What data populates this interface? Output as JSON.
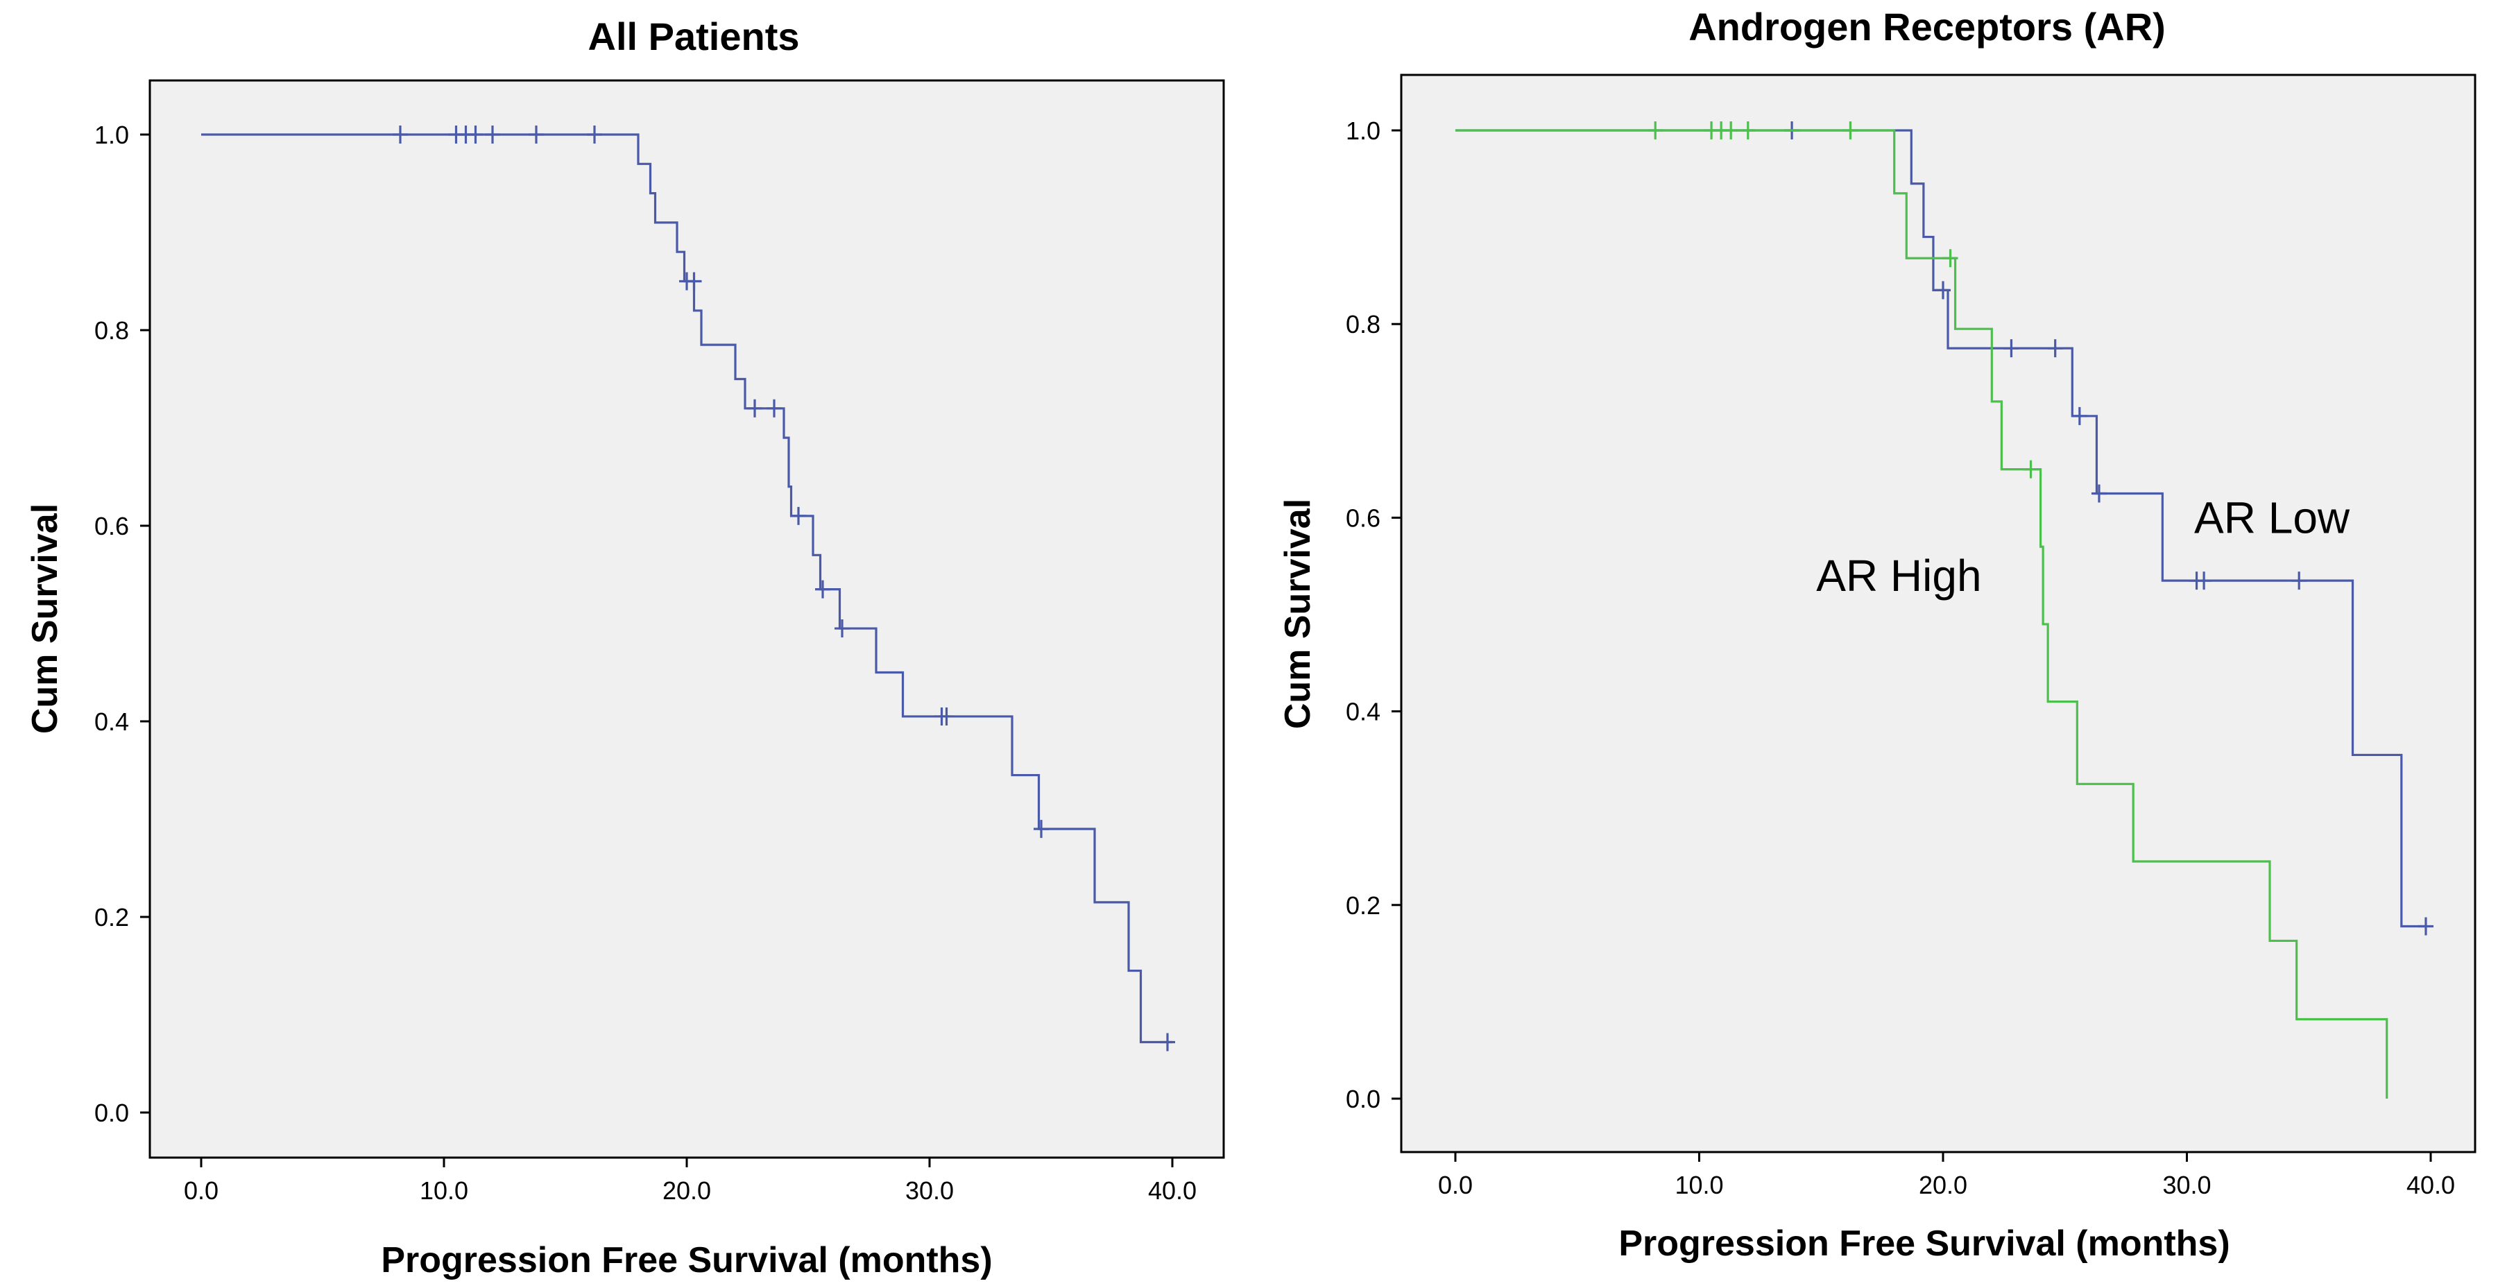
{
  "chart_data": [
    {
      "type": "line",
      "subtype": "kaplan-meier",
      "title": "All Patients",
      "xlabel": "Progression Free Survival (months)",
      "ylabel": "Cum Survival",
      "xlim": [
        0,
        40
      ],
      "ylim": [
        0,
        1
      ],
      "xticks": [
        "0.0",
        "10.0",
        "20.0",
        "30.0",
        "40.0"
      ],
      "yticks": [
        "0.0",
        "0.2",
        "0.4",
        "0.6",
        "0.8",
        "1.0"
      ],
      "grid": false,
      "series": [
        {
          "name": "All Patients",
          "color": "#4a5aa8",
          "steps": [
            [
              0,
              1.0
            ],
            [
              18.0,
              0.97
            ],
            [
              18.5,
              0.94
            ],
            [
              18.7,
              0.91
            ],
            [
              19.6,
              0.88
            ],
            [
              19.9,
              0.85
            ],
            [
              20.3,
              0.82
            ],
            [
              20.6,
              0.785
            ],
            [
              22.0,
              0.75
            ],
            [
              22.4,
              0.72
            ],
            [
              24.0,
              0.69
            ],
            [
              24.2,
              0.64
            ],
            [
              24.3,
              0.61
            ],
            [
              25.2,
              0.57
            ],
            [
              25.5,
              0.535
            ],
            [
              26.3,
              0.495
            ],
            [
              27.8,
              0.45
            ],
            [
              28.9,
              0.405
            ],
            [
              33.4,
              0.345
            ],
            [
              34.5,
              0.29
            ],
            [
              36.8,
              0.215
            ],
            [
              38.2,
              0.145
            ],
            [
              38.7,
              0.072
            ]
          ],
          "end_x": 40.0,
          "censored": [
            [
              8.2,
              1.0
            ],
            [
              10.5,
              1.0
            ],
            [
              10.9,
              1.0
            ],
            [
              11.3,
              1.0
            ],
            [
              12.0,
              1.0
            ],
            [
              13.8,
              1.0
            ],
            [
              16.2,
              1.0
            ],
            [
              20.0,
              0.85
            ],
            [
              20.3,
              0.85
            ],
            [
              22.8,
              0.72
            ],
            [
              23.6,
              0.72
            ],
            [
              24.6,
              0.61
            ],
            [
              25.6,
              0.535
            ],
            [
              26.4,
              0.495
            ],
            [
              30.5,
              0.405
            ],
            [
              30.7,
              0.405
            ],
            [
              34.6,
              0.29
            ],
            [
              39.8,
              0.072
            ]
          ]
        }
      ]
    },
    {
      "type": "line",
      "subtype": "kaplan-meier",
      "title": "Androgen Receptors (AR)",
      "xlabel": "Progression Free Survival (months)",
      "ylabel": "Cum Survival",
      "xlim": [
        0,
        40
      ],
      "ylim": [
        0,
        1
      ],
      "xticks": [
        "0.0",
        "10.0",
        "20.0",
        "30.0",
        "40.0"
      ],
      "yticks": [
        "0.0",
        "0.2",
        "0.4",
        "0.6",
        "0.8",
        "1.0"
      ],
      "grid": false,
      "annotations": [
        {
          "text": "AR Low",
          "x": 30.3,
          "y": 0.6
        },
        {
          "text": "AR High",
          "x": 14.8,
          "y": 0.54
        }
      ],
      "series": [
        {
          "name": "AR Low",
          "color": "#4a5aa8",
          "steps": [
            [
              0,
              1.0
            ],
            [
              18.7,
              0.945
            ],
            [
              19.2,
              0.89
            ],
            [
              19.6,
              0.835
            ],
            [
              20.2,
              0.775
            ],
            [
              25.3,
              0.705
            ],
            [
              26.3,
              0.625
            ],
            [
              29.0,
              0.535
            ],
            [
              36.8,
              0.355
            ],
            [
              38.8,
              0.178
            ]
          ],
          "end_x": 39.8,
          "censored": [
            [
              13.8,
              1.0
            ],
            [
              20.0,
              0.835
            ],
            [
              22.8,
              0.775
            ],
            [
              24.6,
              0.775
            ],
            [
              25.6,
              0.705
            ],
            [
              26.4,
              0.625
            ],
            [
              30.4,
              0.535
            ],
            [
              30.7,
              0.535
            ],
            [
              34.6,
              0.535
            ],
            [
              39.8,
              0.178
            ]
          ]
        },
        {
          "name": "AR High",
          "color": "#4cbf4c",
          "steps": [
            [
              0,
              1.0
            ],
            [
              18.0,
              0.935
            ],
            [
              18.5,
              0.868
            ],
            [
              20.5,
              0.795
            ],
            [
              22.0,
              0.72
            ],
            [
              22.4,
              0.65
            ],
            [
              24.0,
              0.57
            ],
            [
              24.1,
              0.49
            ],
            [
              24.3,
              0.41
            ],
            [
              25.5,
              0.325
            ],
            [
              27.8,
              0.245
            ],
            [
              33.4,
              0.163
            ],
            [
              34.5,
              0.082
            ],
            [
              38.2,
              0.0
            ]
          ],
          "end_x": 38.2,
          "censored": [
            [
              8.2,
              1.0
            ],
            [
              10.5,
              1.0
            ],
            [
              10.9,
              1.0
            ],
            [
              11.3,
              1.0
            ],
            [
              12.0,
              1.0
            ],
            [
              16.2,
              1.0
            ],
            [
              20.3,
              0.868
            ],
            [
              23.6,
              0.65
            ]
          ]
        }
      ]
    }
  ]
}
